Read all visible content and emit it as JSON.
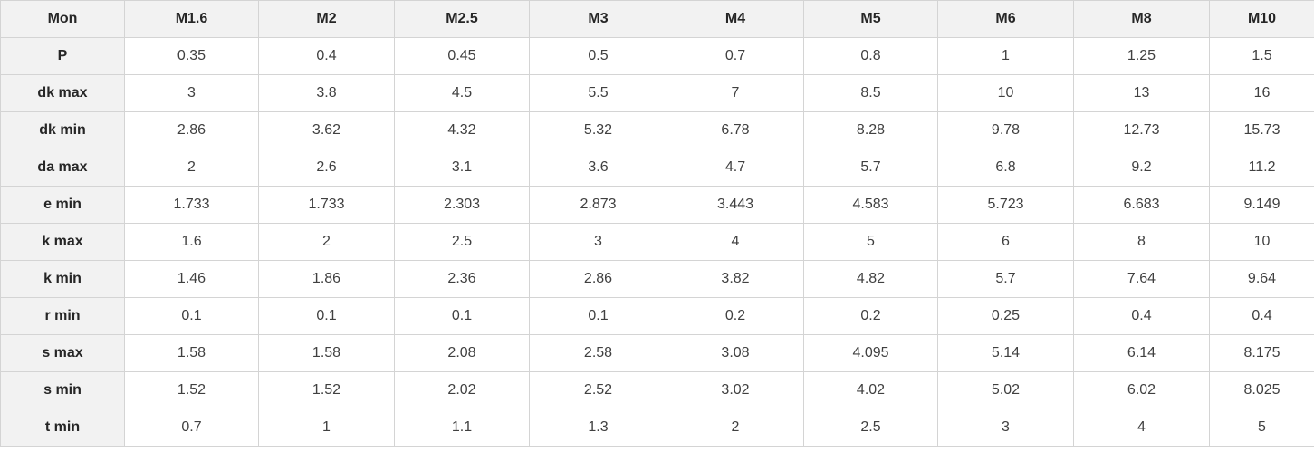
{
  "colors": {
    "header_background": "#f2f2f2",
    "cell_background": "#ffffff",
    "border": "#d4d4d4",
    "header_text": "#262626",
    "cell_text": "#404040"
  },
  "chart_data": {
    "type": "table",
    "title": "",
    "columns": [
      "Mon",
      "M1.6",
      "M2",
      "M2.5",
      "M3",
      "M4",
      "M5",
      "M6",
      "M8",
      "M10"
    ],
    "rows": [
      {
        "label": "P",
        "values": [
          "0.35",
          "0.4",
          "0.45",
          "0.5",
          "0.7",
          "0.8",
          "1",
          "1.25",
          "1.5"
        ]
      },
      {
        "label": "dk max",
        "values": [
          "3",
          "3.8",
          "4.5",
          "5.5",
          "7",
          "8.5",
          "10",
          "13",
          "16"
        ]
      },
      {
        "label": "dk min",
        "values": [
          "2.86",
          "3.62",
          "4.32",
          "5.32",
          "6.78",
          "8.28",
          "9.78",
          "12.73",
          "15.73"
        ]
      },
      {
        "label": "da max",
        "values": [
          "2",
          "2.6",
          "3.1",
          "3.6",
          "4.7",
          "5.7",
          "6.8",
          "9.2",
          "11.2"
        ]
      },
      {
        "label": "e min",
        "values": [
          "1.733",
          "1.733",
          "2.303",
          "2.873",
          "3.443",
          "4.583",
          "5.723",
          "6.683",
          "9.149"
        ]
      },
      {
        "label": "k max",
        "values": [
          "1.6",
          "2",
          "2.5",
          "3",
          "4",
          "5",
          "6",
          "8",
          "10"
        ]
      },
      {
        "label": "k min",
        "values": [
          "1.46",
          "1.86",
          "2.36",
          "2.86",
          "3.82",
          "4.82",
          "5.7",
          "7.64",
          "9.64"
        ]
      },
      {
        "label": "r min",
        "values": [
          "0.1",
          "0.1",
          "0.1",
          "0.1",
          "0.2",
          "0.2",
          "0.25",
          "0.4",
          "0.4"
        ]
      },
      {
        "label": "s max",
        "values": [
          "1.58",
          "1.58",
          "2.08",
          "2.58",
          "3.08",
          "4.095",
          "5.14",
          "6.14",
          "8.175"
        ]
      },
      {
        "label": "s min",
        "values": [
          "1.52",
          "1.52",
          "2.02",
          "2.52",
          "3.02",
          "4.02",
          "5.02",
          "6.02",
          "8.025"
        ]
      },
      {
        "label": "t min",
        "values": [
          "0.7",
          "1",
          "1.1",
          "1.3",
          "2",
          "2.5",
          "3",
          "4",
          "5"
        ]
      }
    ]
  }
}
